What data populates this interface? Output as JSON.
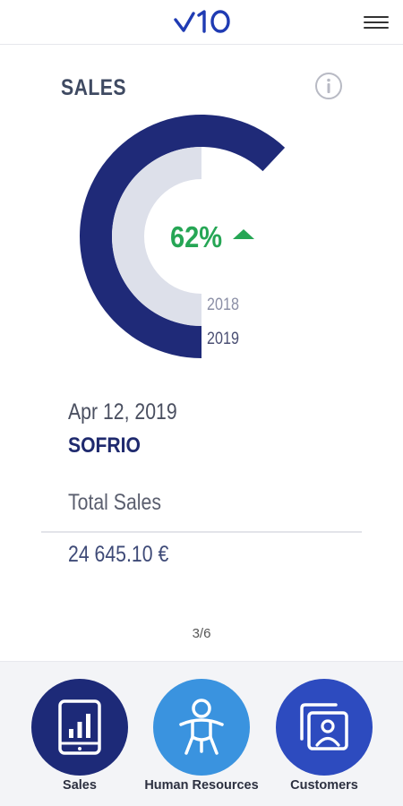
{
  "header": {
    "logo_text": "v10",
    "menu_icon": "hamburger-menu-icon",
    "accent_color": "#1f3bb3"
  },
  "widget": {
    "title": "SALES",
    "info_icon": "info-icon",
    "percentage": "62%",
    "trend_icon": "triangle-up-icon",
    "trend_color": "#26a655",
    "year_previous": "2018",
    "year_current": "2019",
    "ring_current_fraction": 0.62,
    "ring_previous_fraction": 0.5,
    "ring_current_color": "#1f2a78",
    "ring_previous_color": "#dde0ea"
  },
  "details": {
    "date": "Apr 12, 2019",
    "company": "SOFRIO",
    "total_label": "Total Sales",
    "total_value": "24 645.10 €"
  },
  "pager": {
    "text": "3/6"
  },
  "bottom_nav": [
    {
      "label": "Sales",
      "icon": "tablet-bar-chart-icon"
    },
    {
      "label": "Human Resources",
      "icon": "person-figure-icon"
    },
    {
      "label": "Customers",
      "icon": "contact-cards-icon"
    }
  ]
}
